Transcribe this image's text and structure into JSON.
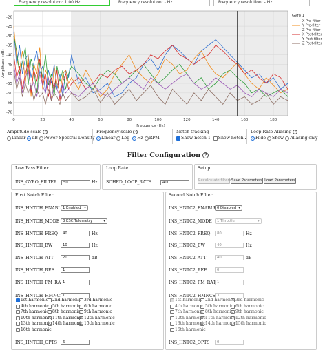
{
  "resolution": {
    "items": [
      "Frequency resolution: 1.00 Hz",
      "Frequency resolution: - Hz",
      "Frequency resolution: - Hz"
    ]
  },
  "chart_data": {
    "type": "line",
    "title": "",
    "xlabel": "Frequency (Hz)",
    "ylabel": "Amplitude (dB)",
    "xlim": [
      0,
      190
    ],
    "ylim": [
      -72,
      -17
    ],
    "x_ticks": [
      "0",
      "20",
      "40",
      "60",
      "80",
      "100",
      "120",
      "140",
      "160",
      "180"
    ],
    "y_ticks": [
      "-20",
      "-25",
      "-30",
      "-35",
      "-40",
      "-45",
      "-50",
      "-55",
      "-60",
      "-65",
      "-70"
    ],
    "shaded_region_x": [
      40,
      190
    ],
    "marker_line_x": 155,
    "grid": true,
    "legend_position": "right",
    "legend_title": "Gyro 1",
    "series": [
      {
        "name": "X Pre-filter",
        "color": "#2f6fd1",
        "x": [
          0,
          2,
          4,
          6,
          8,
          10,
          12,
          14,
          16,
          18,
          20,
          22,
          24,
          26,
          28,
          30,
          32,
          34,
          36,
          38,
          40,
          45,
          50,
          55,
          60,
          65,
          70,
          75,
          80,
          85,
          90,
          95,
          100,
          105,
          110,
          115,
          120,
          125,
          130,
          135,
          140,
          145,
          150,
          155,
          160,
          165,
          170,
          175,
          180,
          185,
          190
        ],
        "values": [
          -28,
          -45,
          -35,
          -50,
          -42,
          -40,
          -52,
          -44,
          -38,
          -50,
          -46,
          -60,
          -48,
          -55,
          -45,
          -58,
          -50,
          -62,
          -48,
          -52,
          -40,
          -55,
          -52,
          -60,
          -58,
          -55,
          -62,
          -60,
          -55,
          -52,
          -45,
          -42,
          -48,
          -40,
          -35,
          -38,
          -42,
          -45,
          -38,
          -35,
          -32,
          -36,
          -40,
          -44,
          -48,
          -52,
          -50,
          -55,
          -52,
          -58,
          -55
        ]
      },
      {
        "name": "Y Pre-filter",
        "color": "#f08c1e",
        "x": [
          0,
          2,
          4,
          6,
          8,
          10,
          12,
          14,
          16,
          18,
          20,
          22,
          24,
          26,
          28,
          30,
          32,
          34,
          36,
          38,
          40,
          45,
          50,
          55,
          60,
          65,
          70,
          75,
          80,
          85,
          90,
          95,
          100,
          105,
          110,
          115,
          120,
          125,
          130,
          135,
          140,
          145,
          150,
          155,
          160,
          165,
          170,
          175,
          180,
          185,
          190
        ],
        "values": [
          -25,
          -42,
          -48,
          -38,
          -55,
          -40,
          -62,
          -45,
          -50,
          -36,
          -58,
          -48,
          -52,
          -64,
          -46,
          -55,
          -60,
          -50,
          -48,
          -55,
          -52,
          -58,
          -48,
          -55,
          -62,
          -58,
          -50,
          -45,
          -40,
          -48,
          -52,
          -55,
          -50,
          -42,
          -45,
          -50,
          -48,
          -42,
          -38,
          -45,
          -50,
          -52,
          -48,
          -44,
          -50,
          -55,
          -58,
          -52,
          -56,
          -60,
          -58
        ]
      },
      {
        "name": "Z Pre-filter",
        "color": "#2e9e3a",
        "x": [
          0,
          2,
          4,
          6,
          8,
          10,
          12,
          14,
          16,
          18,
          20,
          22,
          24,
          26,
          28,
          30,
          32,
          34,
          36,
          38,
          40,
          45,
          50,
          55,
          60,
          65,
          70,
          75,
          80,
          85,
          90,
          95,
          100,
          105,
          110,
          115,
          120,
          125,
          130,
          135,
          140,
          145,
          150,
          155,
          160,
          165,
          170,
          175,
          180,
          185,
          190
        ],
        "values": [
          -30,
          -38,
          -50,
          -44,
          -36,
          -56,
          -42,
          -48,
          -60,
          -44,
          -52,
          -40,
          -56,
          -50,
          -62,
          -46,
          -54,
          -48,
          -58,
          -50,
          -46,
          -50,
          -55,
          -58,
          -52,
          -48,
          -50,
          -55,
          -52,
          -48,
          -45,
          -50,
          -55,
          -52,
          -48,
          -45,
          -50,
          -55,
          -52,
          -58,
          -55,
          -50,
          -48,
          -52,
          -55,
          -60,
          -58,
          -62,
          -60,
          -58,
          -62
        ]
      },
      {
        "name": "X Post-filter",
        "color": "#d62c2c",
        "x": [
          0,
          2,
          4,
          6,
          8,
          10,
          12,
          14,
          16,
          18,
          20,
          22,
          24,
          26,
          28,
          30,
          32,
          34,
          36,
          38,
          40,
          45,
          50,
          55,
          60,
          65,
          70,
          75,
          80,
          85,
          90,
          95,
          100,
          105,
          110,
          115,
          120,
          125,
          130,
          135,
          140,
          145,
          150,
          155,
          160,
          165,
          170,
          175,
          180,
          185,
          190
        ],
        "values": [
          -40,
          -52,
          -46,
          -58,
          -50,
          -44,
          -60,
          -48,
          -54,
          -42,
          -56,
          -50,
          -62,
          -52,
          -58,
          -48,
          -64,
          -54,
          -50,
          -58,
          -55,
          -52,
          -58,
          -55,
          -50,
          -52,
          -48,
          -46,
          -50,
          -48,
          -45,
          -40,
          -42,
          -38,
          -35,
          -40,
          -42,
          -45,
          -42,
          -40,
          -35,
          -38,
          -42,
          -45,
          -50,
          -48,
          -52,
          -55,
          -50,
          -52,
          -58
        ]
      },
      {
        "name": "Y Post-filter",
        "color": "#9b59b6",
        "x": [
          0,
          2,
          4,
          6,
          8,
          10,
          12,
          14,
          16,
          18,
          20,
          22,
          24,
          26,
          28,
          30,
          32,
          34,
          36,
          38,
          40,
          45,
          50,
          55,
          60,
          65,
          70,
          75,
          80,
          85,
          90,
          95,
          100,
          105,
          110,
          115,
          120,
          125,
          130,
          135,
          140,
          145,
          150,
          155,
          160,
          165,
          170,
          175,
          180,
          185,
          190
        ],
        "values": [
          -45,
          -55,
          -50,
          -60,
          -52,
          -48,
          -58,
          -54,
          -62,
          -50,
          -56,
          -60,
          -52,
          -64,
          -55,
          -58,
          -62,
          -56,
          -60,
          -58,
          -60,
          -62,
          -58,
          -55,
          -60,
          -62,
          -58,
          -55,
          -52,
          -55,
          -58,
          -52,
          -55,
          -58,
          -55,
          -52,
          -50,
          -55,
          -58,
          -56,
          -52,
          -55,
          -58,
          -56,
          -60,
          -62,
          -58,
          -60,
          -62,
          -58,
          -60
        ]
      },
      {
        "name": "Z Post-filter",
        "color": "#8d6e63",
        "x": [
          0,
          2,
          4,
          6,
          8,
          10,
          12,
          14,
          16,
          18,
          20,
          22,
          24,
          26,
          28,
          30,
          32,
          34,
          36,
          38,
          40,
          45,
          50,
          55,
          60,
          65,
          70,
          75,
          80,
          85,
          90,
          95,
          100,
          105,
          110,
          115,
          120,
          125,
          130,
          135,
          140,
          145,
          150,
          155,
          160,
          165,
          170,
          175,
          180,
          185,
          190
        ],
        "values": [
          -48,
          -58,
          -52,
          -62,
          -55,
          -60,
          -56,
          -64,
          -58,
          -62,
          -60,
          -66,
          -58,
          -64,
          -60,
          -62,
          -66,
          -60,
          -64,
          -62,
          -60,
          -64,
          -62,
          -58,
          -65,
          -60,
          -66,
          -62,
          -58,
          -64,
          -60,
          -56,
          -62,
          -66,
          -58,
          -62,
          -66,
          -60,
          -64,
          -58,
          -62,
          -66,
          -60,
          -64,
          -62,
          -66,
          -64,
          -60,
          -66,
          -62,
          -64
        ]
      }
    ]
  },
  "controls": {
    "amplitude": {
      "title": "Amplitude scale",
      "options": [
        "Linear",
        "dB",
        "Power Spectral Density"
      ],
      "selected": 1
    },
    "freq": {
      "title": "Frequency scale",
      "options": [
        "Linear",
        "Log",
        "Hz",
        "RPM"
      ]
    },
    "notch": {
      "title": "Notch tracking",
      "options": [
        "Show notch 1",
        "Show notch 2"
      ]
    },
    "alias": {
      "title": "Loop Rate Aliasing",
      "options": [
        "Hide",
        "Show",
        "Aliasing only"
      ]
    }
  },
  "filter_config": {
    "title": "Filter Configuration"
  },
  "lpf": {
    "title": "Low Pass Filter",
    "label": "INS_GYRO_FILTER",
    "value": "50",
    "unit": "Hz"
  },
  "loop_rate": {
    "title": "Loop Rate",
    "label": "SCHED_LOOP_RATE",
    "value": "400"
  },
  "setup": {
    "title": "Setup",
    "recalc": "Recalculate filters",
    "save": "Save Parameters",
    "load": "Load Parameters"
  },
  "notch1": {
    "title": "First Notch Filter",
    "rows": [
      {
        "label": "INS_HNTCH_ENABLE",
        "value": "1 Enabled"
      },
      {
        "label": "INS_HNTCH_MODE",
        "value": "3 ESC Telemetry"
      },
      {
        "label": "INS_HNTCH_FREQ",
        "value": "40",
        "unit": "Hz"
      },
      {
        "label": "INS_HNTCH_BW",
        "value": "10",
        "unit": "Hz"
      },
      {
        "label": "INS_HNTCH_ATT",
        "value": "20",
        "unit": "dB"
      },
      {
        "label": "INS_HNTCH_REF",
        "value": "1"
      },
      {
        "label": "INS_HNTCH_FM_RAT",
        "value": "1"
      },
      {
        "label": "INS_HNTCH_HMNCS",
        "value": "1"
      },
      {
        "label": "INS_HNTCH_OPTS",
        "value": "6"
      }
    ]
  },
  "notch2": {
    "title": "Second Notch Filter",
    "rows": [
      {
        "label": "INS_HNTC2_ENABLE",
        "value": "0 Disabled"
      },
      {
        "label": "INS_HNTC2_MODE",
        "value": "1 Throttle"
      },
      {
        "label": "INS_HNTC2_FREQ",
        "value": "80",
        "unit": "Hz"
      },
      {
        "label": "INS_HNTC2_BW",
        "value": "40",
        "unit": "Hz"
      },
      {
        "label": "INS_HNTC2_ATT",
        "value": "40",
        "unit": "dB"
      },
      {
        "label": "INS_HNTC2_REF",
        "value": "0"
      },
      {
        "label": "INS_HNTC2_FM_RAT",
        "value": "1"
      },
      {
        "label": "INS_HNTC2_HMNCS",
        "value": "3"
      },
      {
        "label": "INS_HNTC2_OPTS",
        "value": "0"
      }
    ]
  },
  "harmonics": [
    "1st harmonic",
    "2nd harmonic",
    "3rd harmonic",
    "4th harmonic",
    "5th harmonic",
    "6th harmonic",
    "7th harmonic",
    "8th harmonic",
    "9th harmonic",
    "10th harmonic",
    "11th harmonic",
    "12th harmonic",
    "13th harmonic",
    "14th harmonic",
    "15th harmonic",
    "16th harmonic"
  ]
}
